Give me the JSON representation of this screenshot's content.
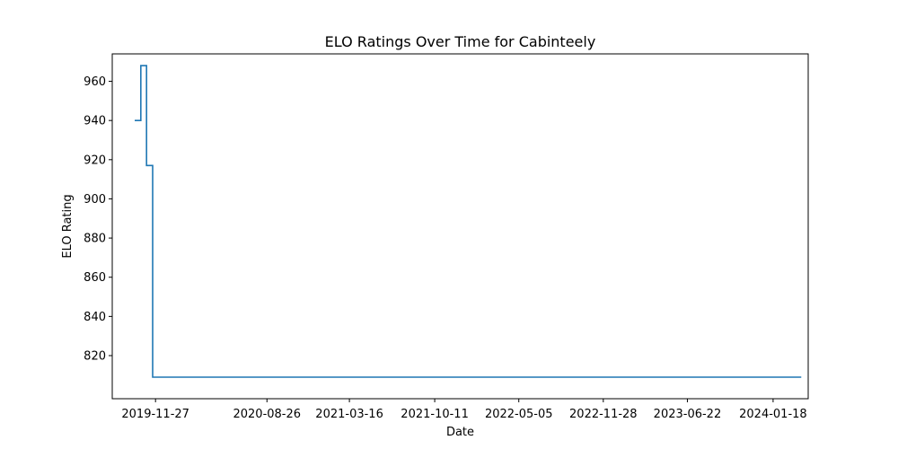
{
  "chart_data": {
    "type": "line",
    "title": "ELO Ratings Over Time for Cabinteely",
    "xlabel": "Date",
    "ylabel": "ELO Rating",
    "x_type": "date",
    "xlim": [
      "2019-08-13",
      "2024-04-13"
    ],
    "ylim": [
      798,
      974
    ],
    "x_ticks": [
      "2019-11-27",
      "2020-08-26",
      "2021-03-16",
      "2021-10-11",
      "2022-05-05",
      "2022-11-28",
      "2023-06-22",
      "2024-01-18"
    ],
    "y_ticks": [
      820,
      840,
      860,
      880,
      900,
      920,
      940,
      960
    ],
    "grid": false,
    "legend": "none",
    "series": [
      {
        "color": "#1f77b4",
        "step": "post",
        "points": [
          {
            "x": "2019-10-07",
            "y": 940
          },
          {
            "x": "2019-10-22",
            "y": 968
          },
          {
            "x": "2019-11-05",
            "y": 917
          },
          {
            "x": "2019-11-20",
            "y": 809
          },
          {
            "x": "2024-03-27",
            "y": 809
          }
        ]
      }
    ]
  }
}
